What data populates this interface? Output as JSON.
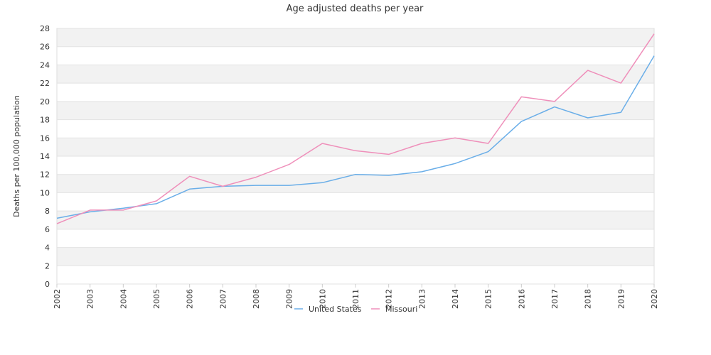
{
  "chart_data": {
    "type": "line",
    "title": "Age adjusted deaths per year",
    "xlabel": "",
    "ylabel": "Deaths per 100,000 population",
    "categories": [
      "2002",
      "2003",
      "2004",
      "2005",
      "2006",
      "2007",
      "2008",
      "2009",
      "2010",
      "2011",
      "2012",
      "2013",
      "2014",
      "2015",
      "2016",
      "2017",
      "2018",
      "2019",
      "2020"
    ],
    "ylim": [
      0,
      28
    ],
    "yticks": [
      0,
      2,
      4,
      6,
      8,
      10,
      12,
      14,
      16,
      18,
      20,
      22,
      24,
      26,
      28
    ],
    "grid": "horizontal-bands",
    "legend_position": "bottom",
    "series": [
      {
        "name": "United States",
        "color": "#6aaee8",
        "values": [
          7.2,
          7.9,
          8.3,
          8.8,
          10.4,
          10.7,
          10.8,
          10.8,
          11.1,
          12.0,
          11.9,
          12.3,
          13.2,
          14.5,
          17.8,
          19.4,
          18.2,
          18.8,
          25.0
        ]
      },
      {
        "name": "Missouri",
        "color": "#ef8fba",
        "values": [
          6.6,
          8.1,
          8.1,
          9.1,
          11.8,
          10.7,
          11.7,
          13.1,
          15.4,
          14.6,
          14.2,
          15.4,
          16.0,
          15.4,
          20.5,
          20.0,
          23.4,
          22.0,
          27.4
        ]
      }
    ]
  }
}
